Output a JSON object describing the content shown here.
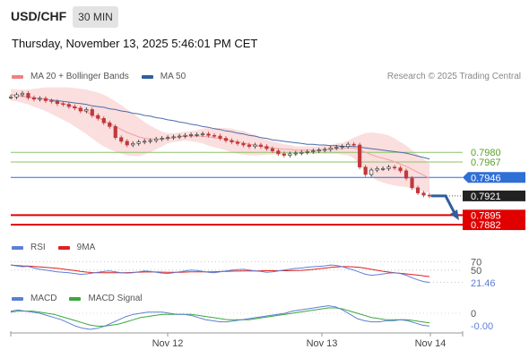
{
  "header": {
    "symbol": "USD/CHF",
    "timeframe": "30 MIN",
    "datetime": "Thursday, November 13, 2025 5:46:01 PM CET"
  },
  "legend_main": [
    {
      "label": "MA 20 + Bollinger Bands",
      "color": "#f08080"
    },
    {
      "label": "MA 50",
      "color": "#2f5f9e"
    }
  ],
  "legend_rsi": [
    {
      "label": "RSI",
      "color": "#5b7fd6"
    },
    {
      "label": "9MA",
      "color": "#e02020"
    }
  ],
  "legend_macd": [
    {
      "label": "MACD",
      "color": "#5b7fd6"
    },
    {
      "label": "MACD Signal",
      "color": "#3aa83a"
    }
  ],
  "research": "Research © 2025 Trading Central",
  "chart_data": {
    "type": "line",
    "price_levels": [
      {
        "value": 0.798,
        "label": "0.7980",
        "style": "green-line"
      },
      {
        "value": 0.7967,
        "label": "0.7967",
        "style": "green-line"
      },
      {
        "value": 0.7946,
        "label": "0.7946",
        "style": "blue-box"
      },
      {
        "value": 0.7921,
        "label": "0.7921",
        "style": "current-price"
      },
      {
        "value": 0.7895,
        "label": "0.7895",
        "style": "red-box"
      },
      {
        "value": 0.7882,
        "label": "0.7882",
        "style": "red-box"
      }
    ],
    "ylim": [
      0.7876,
      0.807
    ],
    "close": [
      0.8055,
      0.8058,
      0.806,
      0.8054,
      0.8052,
      0.8053,
      0.805,
      0.8049,
      0.8046,
      0.8045,
      0.8042,
      0.804,
      0.8036,
      0.8038,
      0.803,
      0.8026,
      0.802,
      0.8015,
      0.8,
      0.7995,
      0.799,
      0.7992,
      0.7994,
      0.7995,
      0.7996,
      0.7998,
      0.7999,
      0.8,
      0.8001,
      0.8002,
      0.8003,
      0.8004,
      0.8004,
      0.8005,
      0.8003,
      0.8002,
      0.7999,
      0.7996,
      0.7994,
      0.7992,
      0.799,
      0.7988,
      0.799,
      0.7988,
      0.7985,
      0.7982,
      0.7978,
      0.7976,
      0.7978,
      0.7979,
      0.798,
      0.7981,
      0.7982,
      0.7983,
      0.7984,
      0.7986,
      0.7987,
      0.7988,
      0.7991,
      0.799,
      0.796,
      0.795,
      0.7956,
      0.7958,
      0.7958,
      0.796,
      0.7959,
      0.7955,
      0.7945,
      0.7932,
      0.7925,
      0.7922,
      0.7921
    ],
    "ma20": [
      0.8058,
      0.8057,
      0.8056,
      0.8055,
      0.8054,
      0.8053,
      0.8052,
      0.805,
      0.8048,
      0.8046,
      0.8044,
      0.8041,
      0.8038,
      0.8035,
      0.8031,
      0.8027,
      0.8023,
      0.8019,
      0.8015,
      0.8011,
      0.8007,
      0.8004,
      0.8001,
      0.7999,
      0.7998,
      0.7998,
      0.7998,
      0.7999,
      0.8,
      0.8001,
      0.8002,
      0.8002,
      0.8002,
      0.8002,
      0.8001,
      0.8,
      0.7999,
      0.7998,
      0.7996,
      0.7994,
      0.7993,
      0.7991,
      0.799,
      0.7988,
      0.7987,
      0.7986,
      0.7985,
      0.7984,
      0.7984,
      0.7983,
      0.7983,
      0.7983,
      0.7983,
      0.7983,
      0.7984,
      0.7984,
      0.7985,
      0.7985,
      0.7986,
      0.7986,
      0.7983,
      0.798,
      0.7977,
      0.7974,
      0.7972,
      0.797,
      0.7967,
      0.7964,
      0.7961,
      0.7957,
      0.7953,
      0.7949,
      0.7945
    ],
    "ma50": [
      0.8058,
      0.8057,
      0.8056,
      0.8055,
      0.8054,
      0.8053,
      0.8052,
      0.8051,
      0.805,
      0.8049,
      0.8048,
      0.8047,
      0.8046,
      0.8045,
      0.8043,
      0.8042,
      0.8041,
      0.8039,
      0.8038,
      0.8036,
      0.8035,
      0.8033,
      0.8032,
      0.803,
      0.8029,
      0.8027,
      0.8026,
      0.8024,
      0.8023,
      0.8021,
      0.802,
      0.8018,
      0.8017,
      0.8015,
      0.8014,
      0.8012,
      0.8011,
      0.8009,
      0.8008,
      0.8006,
      0.8005,
      0.8003,
      0.8002,
      0.8,
      0.7999,
      0.7997,
      0.7996,
      0.7995,
      0.7994,
      0.7993,
      0.7992,
      0.7991,
      0.7991,
      0.799,
      0.799,
      0.7989,
      0.7989,
      0.7988,
      0.7988,
      0.7988,
      0.7987,
      0.7986,
      0.7985,
      0.7984,
      0.7983,
      0.7982,
      0.7981,
      0.798,
      0.7979,
      0.7977,
      0.7975,
      0.7973,
      0.7971
    ],
    "bb_width": [
      0.0008,
      0.0008,
      0.0009,
      0.001,
      0.0012,
      0.0014,
      0.0016,
      0.0018,
      0.002,
      0.0022,
      0.0024,
      0.0026,
      0.0028,
      0.003,
      0.0032,
      0.0034,
      0.0035,
      0.0035,
      0.0034,
      0.0033,
      0.0031,
      0.0029,
      0.0026,
      0.0022,
      0.0018,
      0.0014,
      0.001,
      0.0007,
      0.0006,
      0.0006,
      0.0006,
      0.0007,
      0.0008,
      0.001,
      0.0012,
      0.0013,
      0.0014,
      0.0015,
      0.0016,
      0.0016,
      0.0016,
      0.0015,
      0.0014,
      0.0012,
      0.001,
      0.0009,
      0.0008,
      0.0007,
      0.0006,
      0.0005,
      0.0005,
      0.0005,
      0.0005,
      0.0005,
      0.0006,
      0.0006,
      0.0007,
      0.0008,
      0.001,
      0.0014,
      0.002,
      0.0026,
      0.003,
      0.0032,
      0.0033,
      0.0033,
      0.0032,
      0.003,
      0.0028,
      0.0026,
      0.0024,
      0.0022,
      0.002
    ],
    "forecast": {
      "from": 0.7921,
      "to": 0.7888
    },
    "x_labels": [
      "Nov 12",
      "Nov 13",
      "Nov 14"
    ],
    "rsi": {
      "levels": [
        70,
        50
      ],
      "level_labels": [
        "70",
        "50"
      ],
      "current": "21.46",
      "values": [
        62,
        60,
        58,
        59,
        55,
        52,
        50,
        48,
        46,
        45,
        44,
        42,
        40,
        41,
        43,
        45,
        47,
        48,
        46,
        44,
        43,
        44,
        46,
        48,
        47,
        45,
        43,
        42,
        44,
        46,
        48,
        50,
        49,
        47,
        45,
        44,
        46,
        48,
        50,
        51,
        52,
        50,
        48,
        47,
        45,
        46,
        48,
        50,
        52,
        54,
        55,
        57,
        58,
        59,
        60,
        62,
        61,
        58,
        54,
        50,
        45,
        40,
        38,
        39,
        41,
        43,
        44,
        42,
        38,
        32,
        27,
        23,
        21
      ]
    },
    "macd": {
      "zero_label": "0",
      "current": "-0.00",
      "macd": [
        0.2,
        0.3,
        0.2,
        0.1,
        0.0,
        -0.2,
        -0.4,
        -0.6,
        -0.9,
        -1.2,
        -1.4,
        -1.5,
        -1.4,
        -1.2,
        -0.9,
        -0.6,
        -0.3,
        -0.1,
        0.0,
        0.1,
        0.1,
        0.1,
        0.0,
        -0.1,
        -0.1,
        -0.2,
        -0.4,
        -0.6,
        -0.7,
        -0.8,
        -0.8,
        -0.7,
        -0.6,
        -0.5,
        -0.4,
        -0.3,
        -0.2,
        -0.1,
        0.0,
        0.2,
        0.3,
        0.4,
        0.5,
        0.6,
        0.7,
        0.6,
        0.3,
        -0.1,
        -0.5,
        -0.7,
        -0.8,
        -0.8,
        -0.7,
        -0.7,
        -0.6,
        -0.7,
        -0.9,
        -1.1,
        -1.2
      ],
      "signal": [
        0.1,
        0.2,
        0.2,
        0.2,
        0.1,
        0.0,
        -0.1,
        -0.3,
        -0.5,
        -0.7,
        -0.9,
        -1.1,
        -1.2,
        -1.2,
        -1.1,
        -1.0,
        -0.8,
        -0.6,
        -0.4,
        -0.3,
        -0.2,
        -0.1,
        -0.1,
        -0.1,
        -0.1,
        -0.1,
        -0.2,
        -0.3,
        -0.4,
        -0.5,
        -0.6,
        -0.6,
        -0.6,
        -0.6,
        -0.5,
        -0.4,
        -0.3,
        -0.2,
        -0.1,
        0.0,
        0.1,
        0.2,
        0.3,
        0.4,
        0.5,
        0.5,
        0.4,
        0.2,
        0.0,
        -0.2,
        -0.4,
        -0.5,
        -0.6,
        -0.6,
        -0.6,
        -0.6,
        -0.7,
        -0.8,
        -0.9
      ]
    }
  }
}
